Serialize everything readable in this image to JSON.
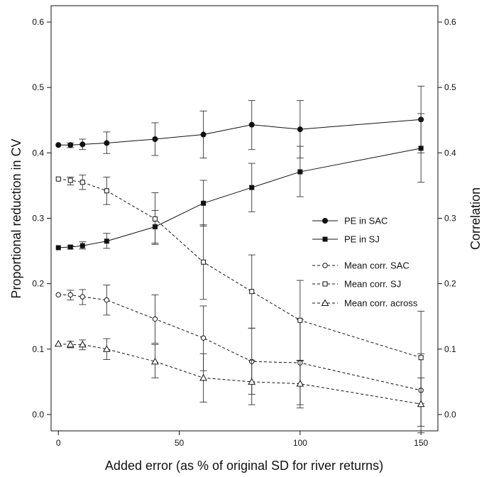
{
  "chart_data": {
    "type": "line",
    "xlabel": "Added error (as % of original SD for river returns)",
    "ylabel": "Proportional reduction in CV",
    "y2label": "Correlation",
    "xlim": [
      -3,
      157
    ],
    "ylim": [
      -0.025,
      0.625
    ],
    "x_ticks": [
      0,
      50,
      100,
      150
    ],
    "y_ticks": [
      0.0,
      0.1,
      0.2,
      0.3,
      0.4,
      0.5,
      0.6
    ],
    "y2_ticks": [
      0.0,
      0.1,
      0.2,
      0.3,
      0.4,
      0.5,
      0.6
    ],
    "y_tick_labels": [
      "0.0",
      "0.1",
      "0.2",
      "0.3",
      "0.4",
      "0.5",
      "0.6"
    ],
    "y2_tick_labels": [
      "0.0",
      "0.1",
      "0.2",
      "0.3",
      "0.4",
      "0.5",
      "0.6"
    ],
    "grid": false,
    "legend_position": "right",
    "x": [
      0,
      5,
      10,
      20,
      40,
      60,
      80,
      100,
      150
    ],
    "series": [
      {
        "name": "PE in SAC",
        "marker": "filled-circle",
        "dash": "solid",
        "values": [
          0.412,
          0.412,
          0.413,
          0.415,
          0.421,
          0.428,
          0.443,
          0.436,
          0.451
        ],
        "err_low": [
          0.412,
          0.408,
          0.405,
          0.399,
          0.396,
          0.392,
          0.405,
          0.392,
          0.4
        ],
        "err_high": [
          0.412,
          0.415,
          0.421,
          0.432,
          0.446,
          0.464,
          0.48,
          0.48,
          0.502
        ]
      },
      {
        "name": "PE in SJ",
        "marker": "filled-square",
        "dash": "solid",
        "values": [
          0.255,
          0.256,
          0.258,
          0.265,
          0.287,
          0.323,
          0.347,
          0.371,
          0.407
        ],
        "err_low": [
          0.255,
          0.253,
          0.253,
          0.254,
          0.262,
          0.288,
          0.31,
          0.333,
          0.355
        ],
        "err_high": [
          0.255,
          0.258,
          0.264,
          0.277,
          0.312,
          0.358,
          0.384,
          0.41,
          0.46
        ]
      },
      {
        "name": "Mean corr. SAC",
        "marker": "open-circle",
        "dash": "dashed",
        "values": [
          0.183,
          0.183,
          0.18,
          0.175,
          0.146,
          0.117,
          0.081,
          0.079,
          0.037
        ],
        "err_low": [
          0.183,
          0.175,
          0.168,
          0.152,
          0.109,
          0.067,
          0.031,
          0.015,
          -0.018
        ],
        "err_high": [
          0.183,
          0.19,
          0.191,
          0.198,
          0.183,
          0.166,
          0.132,
          0.145,
          0.093
        ]
      },
      {
        "name": "Mean corr. SJ",
        "marker": "open-square",
        "dash": "dashed",
        "values": [
          0.36,
          0.358,
          0.355,
          0.342,
          0.299,
          0.233,
          0.188,
          0.144,
          0.087
        ],
        "err_low": [
          0.36,
          0.351,
          0.344,
          0.321,
          0.26,
          0.176,
          0.132,
          0.082,
          0.017
        ],
        "err_high": [
          0.36,
          0.363,
          0.366,
          0.363,
          0.339,
          0.29,
          0.244,
          0.205,
          0.158
        ]
      },
      {
        "name": "Mean corr. across",
        "marker": "open-triangle",
        "dash": "dashed",
        "values": [
          0.108,
          0.107,
          0.107,
          0.1,
          0.081,
          0.056,
          0.05,
          0.047,
          0.016
        ],
        "err_low": [
          0.108,
          0.102,
          0.099,
          0.084,
          0.056,
          0.019,
          0.015,
          0.01,
          -0.028
        ],
        "err_high": [
          0.108,
          0.112,
          0.114,
          0.116,
          0.107,
          0.093,
          0.083,
          0.083,
          0.056
        ]
      }
    ]
  }
}
